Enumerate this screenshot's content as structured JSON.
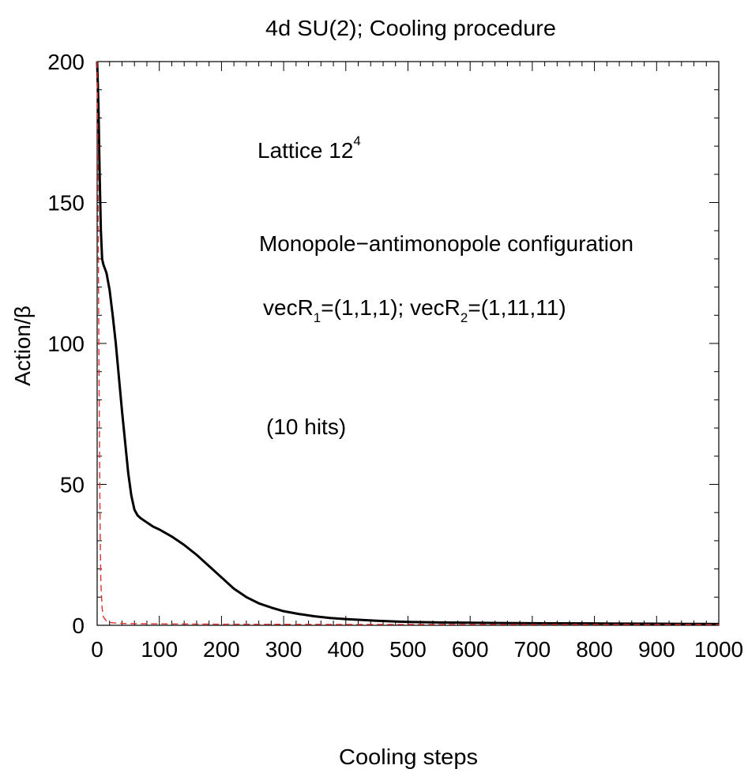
{
  "chart_data": {
    "type": "line",
    "title": "4d SU(2);  Cooling procedure",
    "xlabel": "Cooling steps",
    "ylabel": "Action/β",
    "xlim": [
      0,
      1000
    ],
    "ylim": [
      0,
      200
    ],
    "xticks": [
      "0",
      "100",
      "200",
      "300",
      "400",
      "500",
      "600",
      "700",
      "800",
      "900",
      "1000"
    ],
    "yticks": [
      "0",
      "50",
      "100",
      "150",
      "200"
    ],
    "grid": false,
    "annotations": {
      "lattice": {
        "text": "Lattice 12",
        "sup": "4"
      },
      "config": "Monopole−antimonopole configuration",
      "vec": {
        "a": "vecR",
        "a_sub": "1",
        "b": "=(1,1,1);  vecR",
        "b_sub": "2",
        "c": "=(1,11,11)"
      },
      "hits": "(10 hits)"
    },
    "series": [
      {
        "color": "#000000",
        "style": "solid",
        "x": [
          0,
          2,
          4,
          6,
          8,
          10,
          15,
          20,
          25,
          30,
          35,
          40,
          45,
          50,
          55,
          60,
          65,
          70,
          80,
          90,
          100,
          120,
          140,
          160,
          180,
          200,
          220,
          240,
          260,
          280,
          300,
          325,
          350,
          375,
          400,
          450,
          500,
          550,
          600,
          650,
          700,
          750,
          800,
          850,
          900,
          950,
          1000
        ],
        "y": [
          200,
          185,
          160,
          140,
          130,
          128,
          125,
          119,
          110,
          100,
          88,
          76,
          65,
          54,
          46,
          41,
          39,
          38,
          36.5,
          35,
          34,
          31.5,
          28.5,
          25,
          21,
          17,
          13,
          10,
          7.8,
          6.3,
          5,
          4,
          3.2,
          2.6,
          2.2,
          1.6,
          1.2,
          1.0,
          0.9,
          0.8,
          0.75,
          0.7,
          0.65,
          0.6,
          0.55,
          0.5,
          0.45
        ]
      },
      {
        "color": "#e03030",
        "style": "dashed",
        "x": [
          0,
          1,
          2,
          3,
          4,
          5,
          6,
          8,
          10,
          15,
          20,
          30,
          50,
          100,
          200,
          400,
          600,
          800,
          1000
        ],
        "y": [
          200,
          170,
          130,
          90,
          55,
          30,
          15,
          6,
          3,
          1.5,
          1,
          0.8,
          0.6,
          0.5,
          0.4,
          0.3,
          0.3,
          0.3,
          0.3
        ]
      }
    ]
  }
}
